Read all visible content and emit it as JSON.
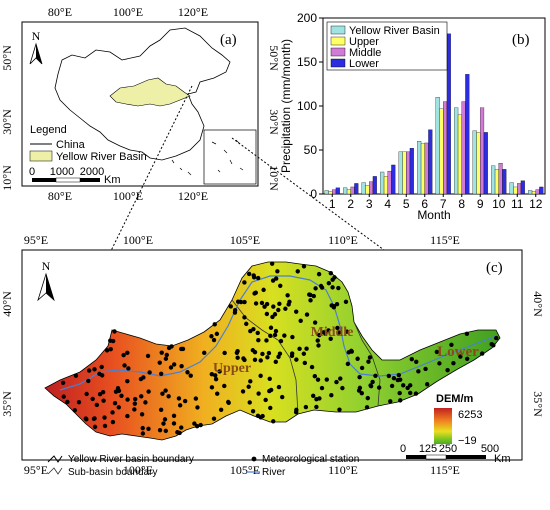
{
  "panel_a": {
    "label": "(a)",
    "top_ticks": [
      "80°E",
      "100°E",
      "120°E"
    ],
    "bottom_ticks": [
      "80°E",
      "100°E",
      "120°E"
    ],
    "left_ticks": [
      "50°N",
      "30°N",
      "10°N"
    ],
    "right_ticks": [
      "50°N",
      "30°N",
      "10°N"
    ],
    "north": "N",
    "legend_title": "Legend",
    "legend_items": [
      "China",
      "Yellow River Basin"
    ],
    "scale_labels": [
      "0",
      "1000",
      "2000"
    ],
    "scale_unit": "Km",
    "colors": {
      "basin": "#eef0a8",
      "outline": "#000000"
    }
  },
  "panel_b": {
    "label": "(b)",
    "ylabel": "Precipitation (mm/month)",
    "xlabel": "Month"
  },
  "chart_data": {
    "type": "bar",
    "categories": [
      "1",
      "2",
      "3",
      "4",
      "5",
      "6",
      "7",
      "8",
      "9",
      "10",
      "11",
      "12"
    ],
    "ylim": [
      0,
      200
    ],
    "yticks": [
      "0",
      "50",
      "100",
      "150",
      "200"
    ],
    "legend_position": "top-left",
    "series": [
      {
        "name": "Yellow River Basin",
        "color": "#9fe3e3",
        "values": [
          4,
          7,
          13,
          25,
          48,
          60,
          110,
          98,
          72,
          32,
          13,
          4
        ]
      },
      {
        "name": "Upper",
        "color": "#ffff66",
        "values": [
          3,
          5,
          10,
          20,
          48,
          57,
          97,
          90,
          70,
          28,
          8,
          3
        ]
      },
      {
        "name": "Middle",
        "color": "#d27bd6",
        "values": [
          5,
          8,
          14,
          26,
          48,
          58,
          105,
          105,
          98,
          35,
          12,
          5
        ]
      },
      {
        "name": "Lower",
        "color": "#2c2ce0",
        "values": [
          7,
          12,
          20,
          33,
          52,
          73,
          182,
          136,
          70,
          28,
          15,
          8
        ]
      }
    ]
  },
  "panel_c": {
    "label": "(c)",
    "top_ticks": [
      "95°E",
      "100°E",
      "105°E",
      "110°E",
      "115°E"
    ],
    "bottom_ticks": [
      "95°E",
      "100°E",
      "105°E",
      "110°E",
      "115°E"
    ],
    "left_ticks": [
      "40°N",
      "35°N"
    ],
    "right_ticks": [
      "40°N",
      "35°N"
    ],
    "north": "N",
    "regions": {
      "upper": "Upper",
      "middle": "Middle",
      "lower": "Lower"
    },
    "dem_title": "DEM/m",
    "dem_max": "6253",
    "dem_min": "−19",
    "legend": {
      "basin_boundary": "Yellow River basin boundary",
      "subbasin_boundary": "Sub-basin boundary",
      "station": "Meteorological station",
      "river": "River"
    },
    "scale_labels": [
      "0",
      "125",
      "250",
      "500"
    ],
    "scale_unit": "Km",
    "colors": {
      "river": "#4a7fd6",
      "station": "#000000"
    }
  }
}
